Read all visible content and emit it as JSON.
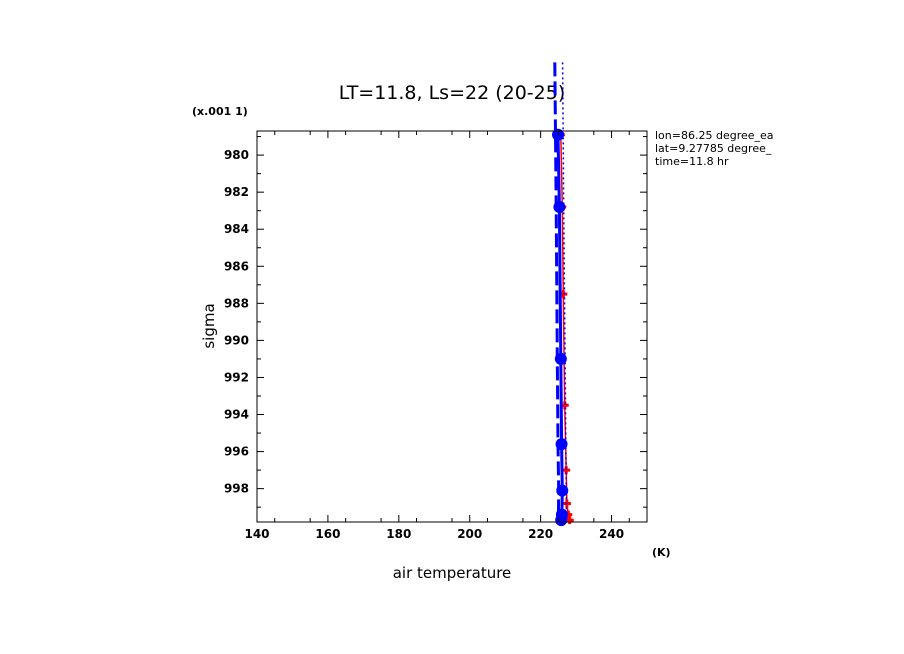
{
  "chart_data": {
    "type": "line",
    "title": "LT=11.8, Ls=22 (20-25)",
    "xlabel": "air temperature",
    "ylabel": "sigma",
    "x_unit": "(K)",
    "y_scale_note": "(x.001 1)",
    "xlim": [
      140,
      250
    ],
    "ylim": [
      999.8,
      978.7
    ],
    "y_inverted": true,
    "x_ticks": [
      140,
      160,
      180,
      200,
      220,
      240
    ],
    "y_ticks": [
      980,
      982,
      984,
      986,
      988,
      990,
      992,
      994,
      996,
      998
    ],
    "info_text": [
      "lon=86.25 degree_ea",
      "lat=9.27785 degree_",
      "time=11.8 hr"
    ],
    "grid": false,
    "series": [
      {
        "color": "#ff0000",
        "style": "solid",
        "marker": "plus",
        "x": [
          225.7,
          226.1,
          226.4,
          226.8,
          227.2,
          227.4,
          227.8,
          228.2
        ],
        "y": [
          978.9,
          982.8,
          987.5,
          993.5,
          997.0,
          998.8,
          999.4,
          999.7
        ]
      },
      {
        "color": "#0000ff",
        "style": "solid",
        "marker": "circle",
        "x": [
          224.9,
          225.3,
          225.7,
          225.9,
          226.1,
          226.0,
          225.8
        ],
        "y": [
          978.9,
          982.8,
          991.0,
          995.6,
          998.1,
          999.4,
          999.7
        ]
      },
      {
        "color": "#0000ff",
        "style": "dashed",
        "marker": "none",
        "x": [
          224.0,
          224.4,
          224.7,
          224.9,
          225.1,
          225.0
        ],
        "y": [
          975.0,
          982.8,
          991.0,
          995.6,
          998.1,
          999.7
        ]
      },
      {
        "color": "#0000ff",
        "style": "dotted",
        "marker": "none",
        "x": [
          226.2,
          226.5,
          226.9,
          227.1,
          227.3
        ],
        "y": [
          975.0,
          982.8,
          991.0,
          995.6,
          999.7
        ]
      }
    ]
  }
}
